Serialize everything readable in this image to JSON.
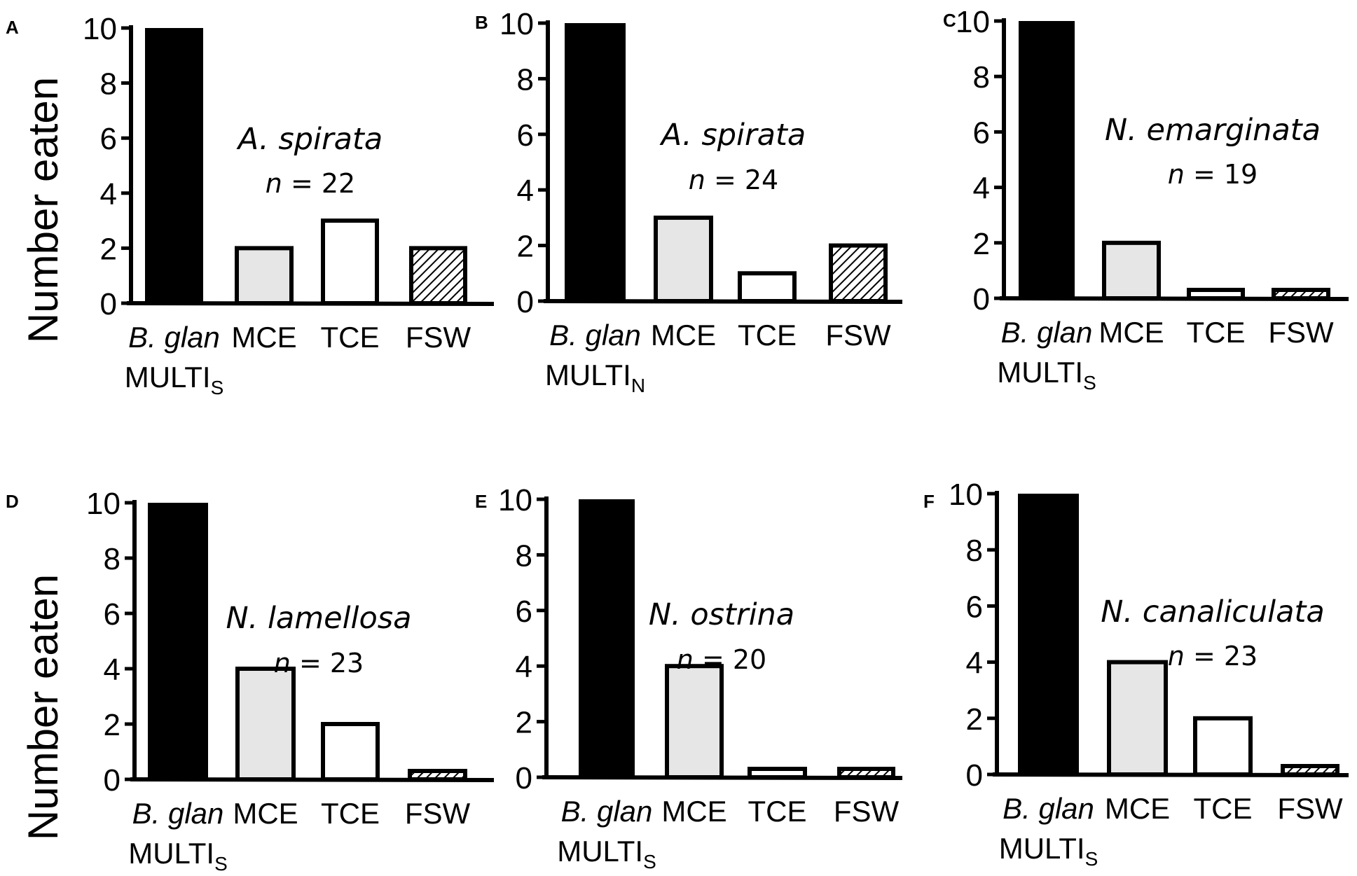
{
  "figure": {
    "ylabel": "Number eaten",
    "colors": {
      "bglan": "#000000",
      "mce": "#e6e6e6",
      "tce": "#ffffff",
      "fsw": "hatch",
      "axis": "#000000"
    }
  },
  "chart_data": [
    {
      "type": "bar",
      "panel": "A",
      "title": "A. spirata",
      "n_label": "n = 22",
      "categories": [
        "B. glan MULTIS",
        "MCE",
        "TCE",
        "FSW"
      ],
      "cat_main": [
        "B. glan",
        "MCE",
        "TCE",
        "FSW"
      ],
      "cat_line2": "MULTI",
      "cat_sub": "S",
      "values": [
        10,
        2,
        3,
        2
      ],
      "ylabel": "Number eaten",
      "ylim": [
        0,
        10
      ],
      "yticks": [
        "0",
        "2",
        "4",
        "6",
        "8",
        "10"
      ]
    },
    {
      "type": "bar",
      "panel": "B",
      "title": "A. spirata",
      "n_label": "n = 24",
      "categories": [
        "B. glan MULTIN",
        "MCE",
        "TCE",
        "FSW"
      ],
      "cat_main": [
        "B. glan",
        "MCE",
        "TCE",
        "FSW"
      ],
      "cat_line2": "MULTI",
      "cat_sub": "N",
      "values": [
        10,
        3,
        1,
        2
      ],
      "ylabel": "",
      "ylim": [
        0,
        10
      ],
      "yticks": [
        "0",
        "2",
        "4",
        "6",
        "8",
        "10"
      ]
    },
    {
      "type": "bar",
      "panel": "C",
      "title": "N. emarginata",
      "n_label": "n = 19",
      "categories": [
        "B. glan MULTIS",
        "MCE",
        "TCE",
        "FSW"
      ],
      "cat_main": [
        "B. glan",
        "MCE",
        "TCE",
        "FSW"
      ],
      "cat_line2": "MULTI",
      "cat_sub": "S",
      "values": [
        10,
        2,
        0,
        0
      ],
      "ylabel": "",
      "ylim": [
        0,
        10
      ],
      "yticks": [
        "0",
        "2",
        "4",
        "6",
        "8",
        "10"
      ]
    },
    {
      "type": "bar",
      "panel": "D",
      "title": "N. lamellosa",
      "n_label": "n = 23",
      "categories": [
        "B. glan MULTIS",
        "MCE",
        "TCE",
        "FSW"
      ],
      "cat_main": [
        "B. glan",
        "MCE",
        "TCE",
        "FSW"
      ],
      "cat_line2": "MULTI",
      "cat_sub": "S",
      "values": [
        10,
        4,
        2,
        0
      ],
      "ylabel": "Number eaten",
      "ylim": [
        0,
        10
      ],
      "yticks": [
        "0",
        "2",
        "4",
        "6",
        "8",
        "10"
      ]
    },
    {
      "type": "bar",
      "panel": "E",
      "title": "N. ostrina",
      "n_label": "n = 20",
      "categories": [
        "B. glan MULTIS",
        "MCE",
        "TCE",
        "FSW"
      ],
      "cat_main": [
        "B. glan",
        "MCE",
        "TCE",
        "FSW"
      ],
      "cat_line2": "MULTI",
      "cat_sub": "S",
      "values": [
        10,
        4,
        0,
        0
      ],
      "ylabel": "",
      "ylim": [
        0,
        10
      ],
      "yticks": [
        "0",
        "2",
        "4",
        "6",
        "8",
        "10"
      ]
    },
    {
      "type": "bar",
      "panel": "F",
      "title": "N. canaliculata",
      "n_label": "n = 23",
      "categories": [
        "B. glan MULTIS",
        "MCE",
        "TCE",
        "FSW"
      ],
      "cat_main": [
        "B. glan",
        "MCE",
        "TCE",
        "FSW"
      ],
      "cat_line2": "MULTI",
      "cat_sub": "S",
      "values": [
        10,
        4,
        2,
        0
      ],
      "ylabel": "",
      "ylim": [
        0,
        10
      ],
      "yticks": [
        "0",
        "2",
        "4",
        "6",
        "8",
        "10"
      ]
    }
  ]
}
